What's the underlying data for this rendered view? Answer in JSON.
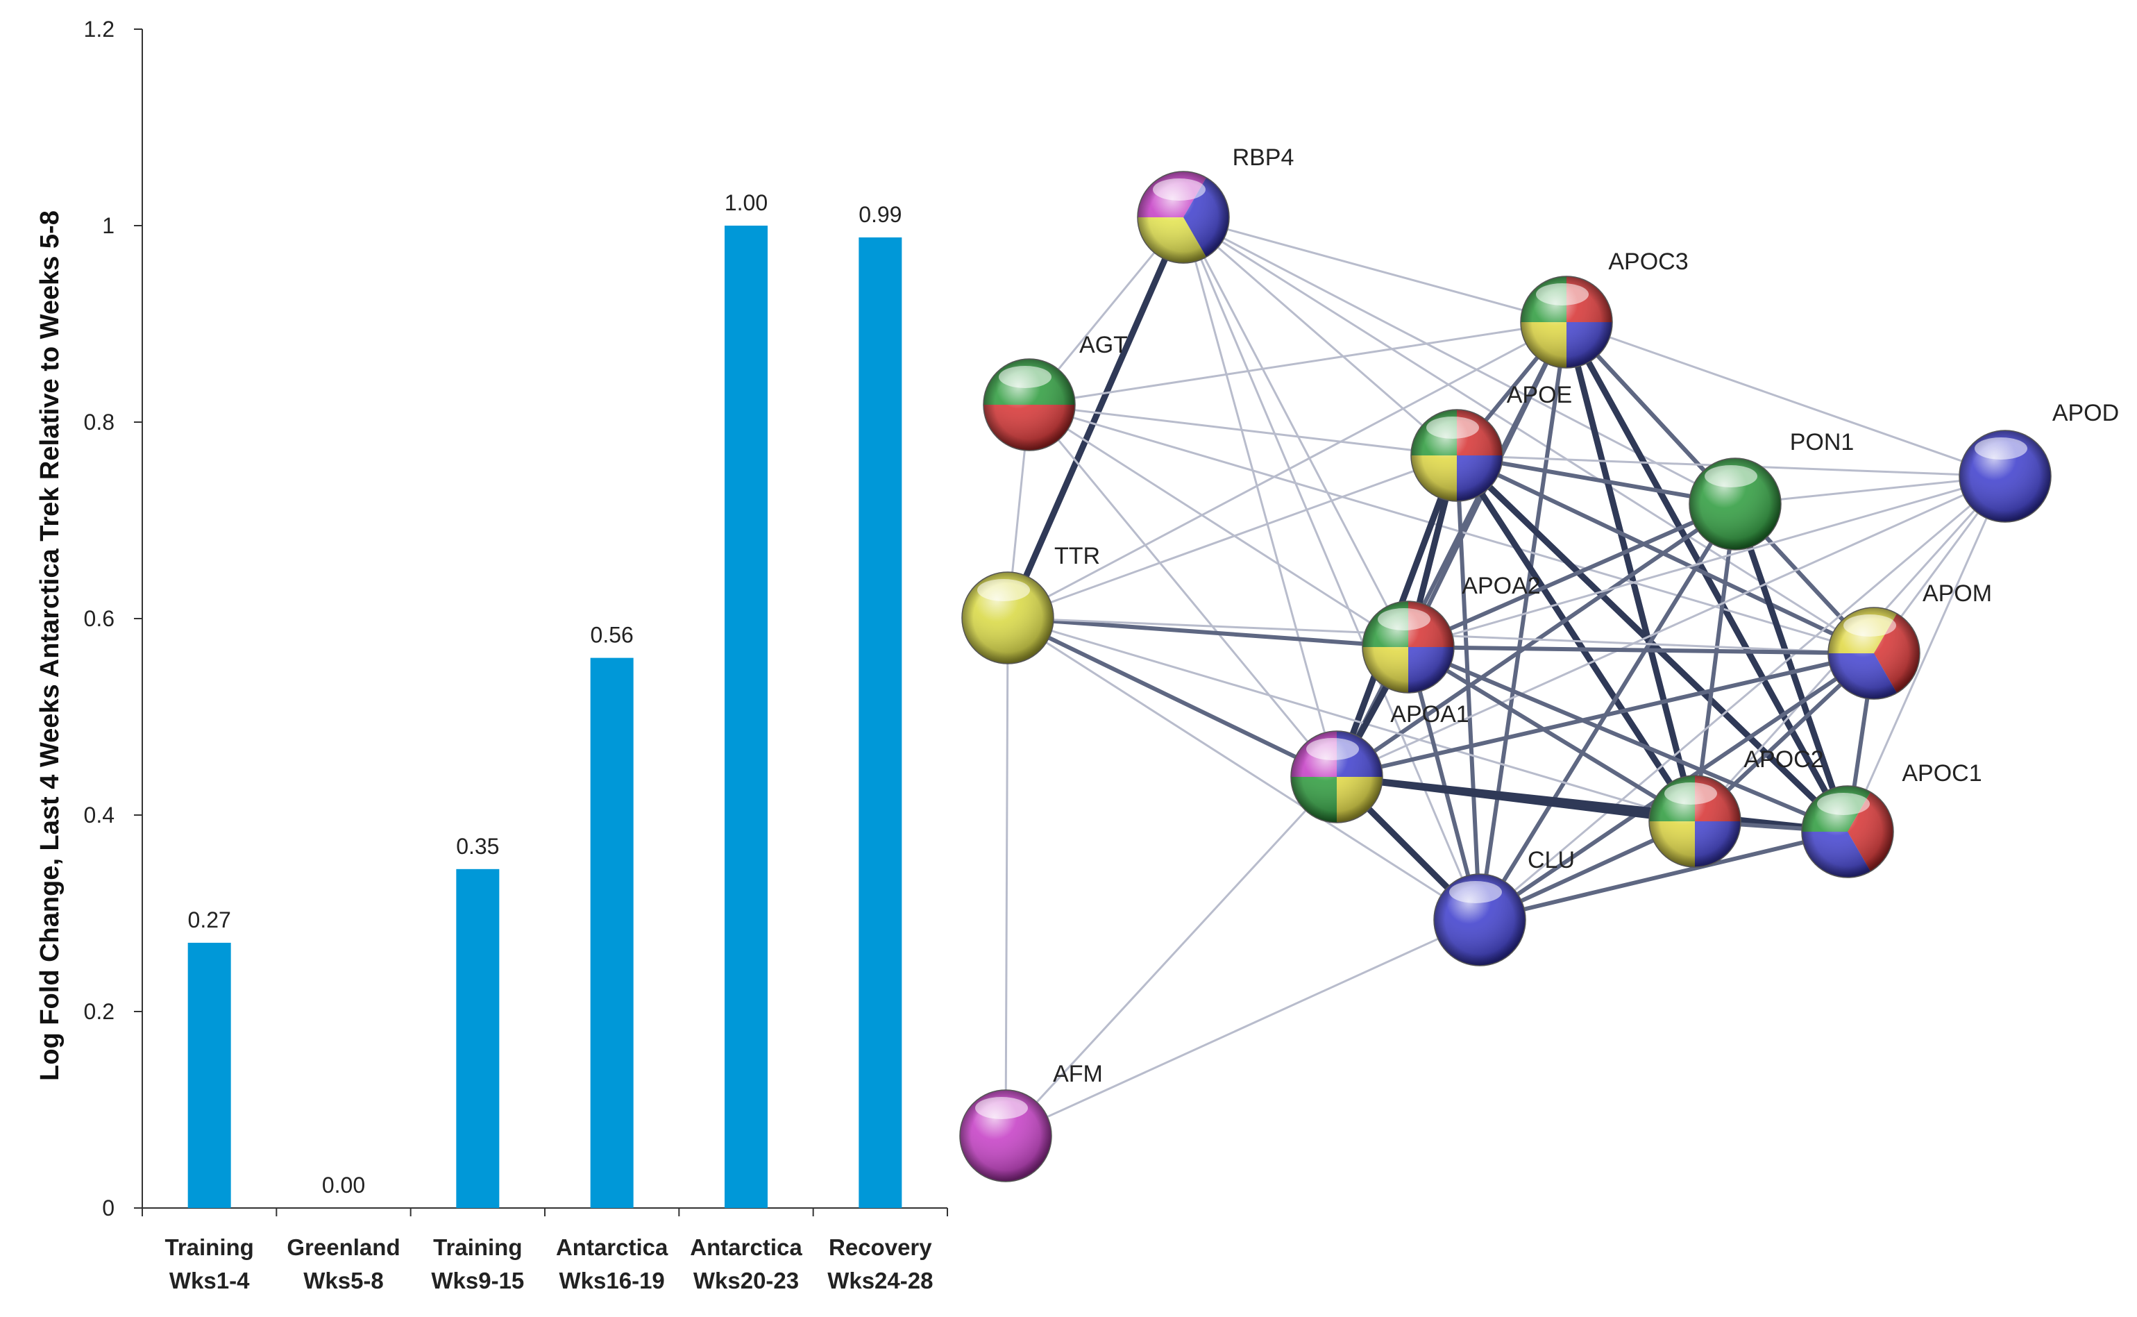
{
  "chart_data": {
    "type": "bar",
    "ylabel": "Log Fold Change, Last 4 Weeks Antarctica Trek Relative to Weeks 5-8",
    "ylim": [
      0,
      1.2
    ],
    "yticks": [
      {
        "value": 0,
        "label": "0"
      },
      {
        "value": 0.2,
        "label": "0.2"
      },
      {
        "value": 0.4,
        "label": "0.4"
      },
      {
        "value": 0.6,
        "label": "0.6"
      },
      {
        "value": 0.8,
        "label": "0.8"
      },
      {
        "value": 1.0,
        "label": "1"
      },
      {
        "value": 1.2,
        "label": "1.2"
      }
    ],
    "categories": [
      {
        "line1": "Training",
        "line2": "Wks1-4"
      },
      {
        "line1": "Greenland",
        "line2": "Wks5-8"
      },
      {
        "line1": "Training",
        "line2": "Wks9-15"
      },
      {
        "line1": "Antarctica",
        "line2": "Wks16-19"
      },
      {
        "line1": "Antarctica",
        "line2": "Wks20-23"
      },
      {
        "line1": "Recovery",
        "line2": "Wks24-28"
      }
    ],
    "values": [
      0.27,
      0.0,
      0.345,
      0.56,
      1.0,
      0.988
    ],
    "value_labels": [
      "0.27",
      "0.00",
      "0.35",
      "0.56",
      "1.00",
      "0.99"
    ],
    "bar_color": "#0098d8"
  },
  "network": {
    "nodes": [
      {
        "id": "RBP4",
        "label": "RBP4",
        "colors": [
          "#c43ac4",
          "#3b3bcc",
          "#e2e24a"
        ]
      },
      {
        "id": "APOC3",
        "label": "APOC3",
        "colors": [
          "#2a9a3a",
          "#d63030",
          "#4040d0",
          "#e0d840"
        ]
      },
      {
        "id": "AGT",
        "label": "AGT",
        "colors": [
          "#2a9a3a",
          "#d63030"
        ]
      },
      {
        "id": "APOE",
        "label": "APOE",
        "colors": [
          "#2a9a3a",
          "#d63030",
          "#4040d0",
          "#e0d840"
        ]
      },
      {
        "id": "PON1",
        "label": "PON1",
        "colors": [
          "#2a9a3a"
        ]
      },
      {
        "id": "APOD",
        "label": "APOD",
        "colors": [
          "#3b3bcc"
        ]
      },
      {
        "id": "TTR",
        "label": "TTR",
        "colors": [
          "#d8d840"
        ]
      },
      {
        "id": "APOA2",
        "label": "APOA2",
        "colors": [
          "#2a9a3a",
          "#d63030",
          "#4040d0",
          "#e0d840"
        ]
      },
      {
        "id": "APOM",
        "label": "APOM",
        "colors": [
          "#e0d840",
          "#d63030",
          "#4040d0"
        ]
      },
      {
        "id": "APOA1",
        "label": "APOA1",
        "colors": [
          "#c43ac4",
          "#3b3bcc",
          "#e0d840",
          "#2a9a3a"
        ]
      },
      {
        "id": "APOC2",
        "label": "APOC2",
        "colors": [
          "#2a9a3a",
          "#d63030",
          "#4040d0",
          "#e0d840"
        ]
      },
      {
        "id": "APOC1",
        "label": "APOC1",
        "colors": [
          "#2a9a3a",
          "#d63030",
          "#4040d0"
        ]
      },
      {
        "id": "CLU",
        "label": "CLU",
        "colors": [
          "#3b3bcc"
        ]
      },
      {
        "id": "AFM",
        "label": "AFM",
        "colors": [
          "#c43ac4"
        ]
      }
    ],
    "edges": [
      [
        "RBP4",
        "TTR",
        3
      ],
      [
        "RBP4",
        "APOC3",
        1
      ],
      [
        "RBP4",
        "APOE",
        1
      ],
      [
        "RBP4",
        "APOA2",
        1
      ],
      [
        "RBP4",
        "APOA1",
        1
      ],
      [
        "RBP4",
        "CLU",
        1
      ],
      [
        "RBP4",
        "APOM",
        1
      ],
      [
        "RBP4",
        "AGT",
        1
      ],
      [
        "RBP4",
        "PON1",
        1
      ],
      [
        "APOC3",
        "APOE",
        2
      ],
      [
        "APOC3",
        "PON1",
        2
      ],
      [
        "APOC3",
        "APOD",
        1
      ],
      [
        "APOC3",
        "APOA2",
        2
      ],
      [
        "APOC3",
        "APOA1",
        2
      ],
      [
        "APOC3",
        "APOC2",
        3
      ],
      [
        "APOC3",
        "APOC1",
        3
      ],
      [
        "APOC3",
        "APOM",
        2
      ],
      [
        "APOC3",
        "CLU",
        2
      ],
      [
        "APOC3",
        "AGT",
        1
      ],
      [
        "APOC3",
        "TTR",
        1
      ],
      [
        "AGT",
        "TTR",
        1
      ],
      [
        "AGT",
        "APOE",
        1
      ],
      [
        "AGT",
        "APOA2",
        1
      ],
      [
        "AGT",
        "APOA1",
        1
      ],
      [
        "AGT",
        "APOM",
        1
      ],
      [
        "APOE",
        "PON1",
        2
      ],
      [
        "APOE",
        "APOA2",
        3
      ],
      [
        "APOE",
        "APOA1",
        3
      ],
      [
        "APOE",
        "APOC2",
        3
      ],
      [
        "APOE",
        "APOC1",
        3
      ],
      [
        "APOE",
        "APOM",
        2
      ],
      [
        "APOE",
        "CLU",
        2
      ],
      [
        "APOE",
        "APOD",
        1
      ],
      [
        "APOE",
        "TTR",
        1
      ],
      [
        "PON1",
        "APOD",
        1
      ],
      [
        "PON1",
        "APOA2",
        2
      ],
      [
        "PON1",
        "APOA1",
        2
      ],
      [
        "PON1",
        "APOC2",
        2
      ],
      [
        "PON1",
        "APOC1",
        3
      ],
      [
        "PON1",
        "APOM",
        2
      ],
      [
        "PON1",
        "CLU",
        2
      ],
      [
        "APOD",
        "APOA2",
        1
      ],
      [
        "APOD",
        "APOA1",
        1
      ],
      [
        "APOD",
        "APOC2",
        1
      ],
      [
        "APOD",
        "APOC1",
        1
      ],
      [
        "APOD",
        "APOM",
        1
      ],
      [
        "APOD",
        "CLU",
        1
      ],
      [
        "TTR",
        "APOA2",
        2
      ],
      [
        "TTR",
        "APOA1",
        2
      ],
      [
        "TTR",
        "AFM",
        1
      ],
      [
        "TTR",
        "CLU",
        1
      ],
      [
        "TTR",
        "APOM",
        1
      ],
      [
        "TTR",
        "APOC2",
        1
      ],
      [
        "APOA2",
        "APOA1",
        3
      ],
      [
        "APOA2",
        "APOC2",
        2
      ],
      [
        "APOA2",
        "APOC1",
        2
      ],
      [
        "APOA2",
        "APOM",
        2
      ],
      [
        "APOA2",
        "CLU",
        2
      ],
      [
        "APOM",
        "APOA1",
        2
      ],
      [
        "APOM",
        "APOC2",
        2
      ],
      [
        "APOM",
        "APOC1",
        2
      ],
      [
        "APOM",
        "CLU",
        2
      ],
      [
        "APOA1",
        "APOC2",
        3
      ],
      [
        "APOA1",
        "APOC1",
        3
      ],
      [
        "APOA1",
        "CLU",
        3
      ],
      [
        "APOA1",
        "AFM",
        1
      ],
      [
        "APOC2",
        "APOC1",
        2
      ],
      [
        "APOC2",
        "CLU",
        2
      ],
      [
        "APOC1",
        "CLU",
        2
      ],
      [
        "CLU",
        "AFM",
        1
      ]
    ]
  }
}
